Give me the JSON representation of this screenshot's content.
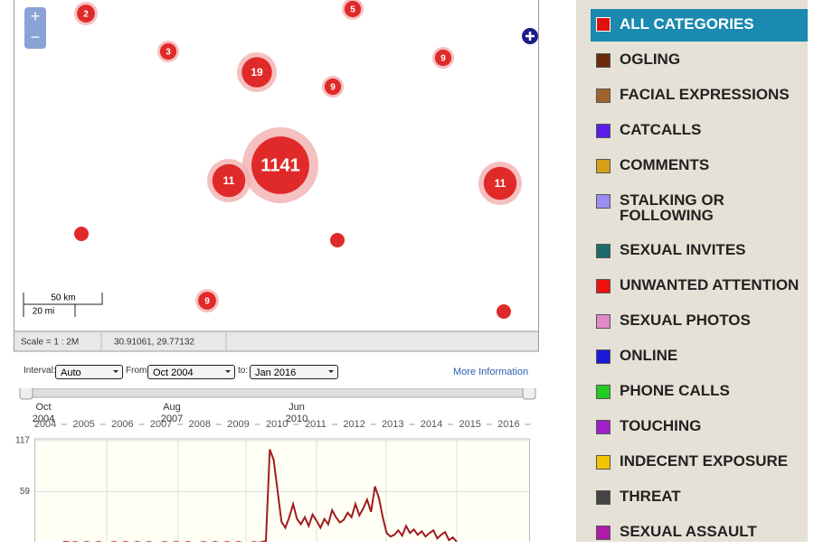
{
  "map": {
    "zoom_in": "+",
    "zoom_out": "−",
    "clusters": [
      "2",
      "5",
      "3",
      "19",
      "9",
      "9",
      "1141",
      "11",
      "11",
      "9"
    ],
    "scale_km": "50 km",
    "scale_mi": "20 mi",
    "scale_ratio": "Scale = 1 : 2M",
    "coordinates": "30.91061, 29.77132"
  },
  "controls": {
    "interval_label": "Interval:",
    "interval": "Auto",
    "from_label": "From:",
    "from": "Oct 2004",
    "to_label": "to:",
    "to": "Jan 2016",
    "more_info": "More Information"
  },
  "timeline": {
    "markers": [
      {
        "month": "Oct",
        "year": "2004"
      },
      {
        "month": "Aug",
        "year": "2007"
      },
      {
        "month": "Jun",
        "year": "2010"
      }
    ],
    "years": [
      "2004",
      "2005",
      "2006",
      "2007",
      "2008",
      "2009",
      "2010",
      "2011",
      "2012",
      "2013",
      "2014",
      "2015",
      "2016"
    ]
  },
  "chart": {
    "type": "line",
    "color": "#a01c1c",
    "ylim": [
      0,
      117
    ],
    "yticks": [
      59,
      117
    ],
    "values": [
      2,
      2,
      1,
      2,
      1,
      1,
      2,
      1,
      1,
      2,
      1,
      1,
      1,
      2,
      1,
      1,
      2,
      1,
      1,
      2,
      1,
      1,
      2,
      1,
      1,
      1,
      2,
      1,
      1,
      2,
      1,
      1,
      2,
      1,
      1,
      1,
      2,
      1,
      1,
      2,
      1,
      1,
      2,
      1,
      1,
      2,
      1,
      1,
      1,
      2,
      1,
      2,
      3,
      107,
      95,
      60,
      25,
      18,
      30,
      45,
      28,
      22,
      30,
      20,
      33,
      26,
      18,
      28,
      22,
      38,
      30,
      24,
      27,
      35,
      30,
      45,
      32,
      40,
      50,
      36,
      65,
      52,
      30,
      12,
      8,
      10,
      15,
      9,
      20,
      12,
      16,
      10,
      14,
      8,
      12,
      15,
      6,
      10,
      13,
      4,
      7,
      2
    ]
  },
  "categories": [
    {
      "name": "ALL CATEGORIES",
      "color": "#e01010"
    },
    {
      "name": "OGLING",
      "color": "#6b2a0a"
    },
    {
      "name": "FACIAL EXPRESSIONS",
      "color": "#a0622d"
    },
    {
      "name": "CATCALLS",
      "color": "#5a1ee8"
    },
    {
      "name": "COMMENTS",
      "color": "#d4a017"
    },
    {
      "name": "STALKING OR FOLLOWING",
      "color": "#9a8ef0"
    },
    {
      "name": "SEXUAL INVITES",
      "color": "#1f6b6b"
    },
    {
      "name": "UNWANTED ATTENTION",
      "color": "#f01010"
    },
    {
      "name": "SEXUAL PHOTOS",
      "color": "#e08ac8"
    },
    {
      "name": "ONLINE",
      "color": "#1a1ad8"
    },
    {
      "name": "PHONE CALLS",
      "color": "#22cc22"
    },
    {
      "name": "TOUCHING",
      "color": "#a020c8"
    },
    {
      "name": "INDECENT EXPOSURE",
      "color": "#f5c400"
    },
    {
      "name": "THREAT",
      "color": "#444444"
    },
    {
      "name": "SEXUAL ASSAULT",
      "color": "#b01aa8"
    }
  ]
}
